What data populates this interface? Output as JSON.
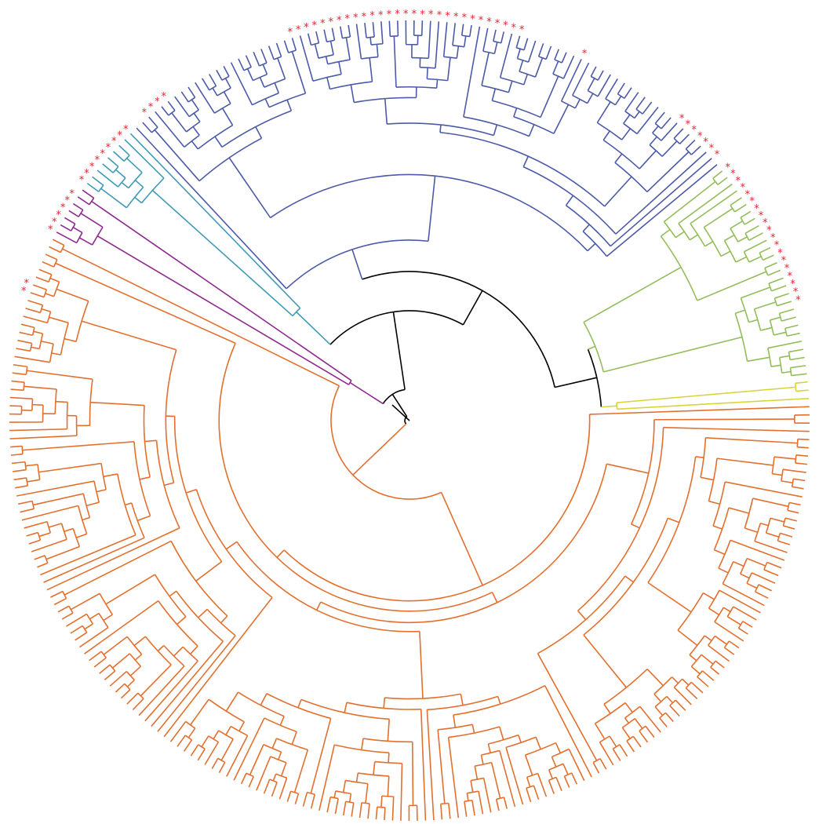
{
  "figure": {
    "type": "circular phylogenetic tree",
    "clade_colors": {
      "backbone": "#000000",
      "orange": "#e2702e",
      "blue": "#4c5aa8",
      "green": "#93bd5a",
      "yellow": "#d8d43a",
      "teal": "#3f9ab5",
      "purple": "#8e2a8e"
    },
    "marker_symbol": "*",
    "marker_color": "#e0262f",
    "clades": [
      {
        "color": "orange",
        "leaves": 178
      },
      {
        "color": "purple",
        "leaves": 7
      },
      {
        "color": "teal",
        "leaves": 9
      },
      {
        "color": "blue",
        "leaves": 80
      },
      {
        "color": "green",
        "leaves": 28
      },
      {
        "color": "yellow",
        "leaves": 3
      }
    ],
    "marked_leaf_groups": [
      {
        "clade": "purple",
        "count": 6
      },
      {
        "clade": "teal",
        "count": 9
      },
      {
        "clade": "blue",
        "count": 4
      },
      {
        "clade": "blue",
        "count": 29
      },
      {
        "clade": "blue",
        "count": 1
      },
      {
        "clade": "green",
        "count": 19
      },
      {
        "clade": "blue",
        "count": 7
      },
      {
        "clade": "orange",
        "count": 2
      }
    ]
  }
}
